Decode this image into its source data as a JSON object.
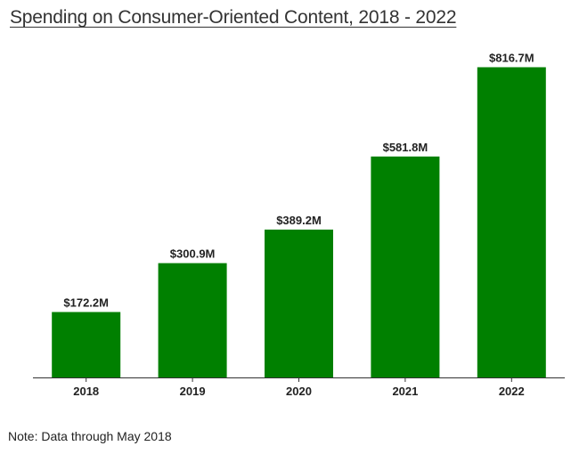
{
  "chart_data": {
    "type": "bar",
    "title": "Spending on Consumer-Oriented Content, 2018 - 2022",
    "categories": [
      "2018",
      "2019",
      "2020",
      "2021",
      "2022"
    ],
    "values": [
      172.2,
      300.9,
      389.2,
      581.8,
      816.7
    ],
    "value_labels": [
      "$172.2M",
      "$300.9M",
      "$389.2M",
      "$581.8M",
      "$816.7M"
    ],
    "xlabel": "",
    "ylabel": "",
    "ylim": [
      0,
      900
    ],
    "bar_color": "#008000",
    "grid": false,
    "legend": "none"
  },
  "note": "Note: Data through May 2018"
}
